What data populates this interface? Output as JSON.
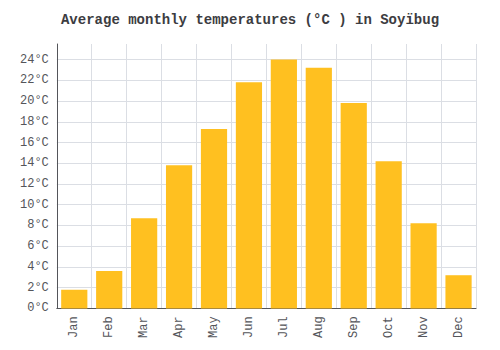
{
  "chart_data": {
    "type": "bar",
    "title": "Average monthly temperatures (°C ) in Soyïbug",
    "categories": [
      "Jan",
      "Feb",
      "Mar",
      "Apr",
      "May",
      "Jun",
      "Jul",
      "Aug",
      "Sep",
      "Oct",
      "Nov",
      "Dec"
    ],
    "values": [
      1.8,
      3.6,
      8.7,
      13.8,
      17.3,
      21.8,
      24.0,
      23.2,
      19.8,
      14.2,
      8.2,
      3.2
    ],
    "color": "#FFC020",
    "ylim": [
      0,
      25.5
    ],
    "yticks": [
      {
        "value": 0,
        "label": "0°C"
      },
      {
        "value": 2,
        "label": "2°C"
      },
      {
        "value": 4,
        "label": "4°C"
      },
      {
        "value": 6,
        "label": "6°C"
      },
      {
        "value": 8,
        "label": "8°C"
      },
      {
        "value": 10,
        "label": "10°C"
      },
      {
        "value": 12,
        "label": "12°C"
      },
      {
        "value": 14,
        "label": "14°C"
      },
      {
        "value": 16,
        "label": "16°C"
      },
      {
        "value": 18,
        "label": "18°C"
      },
      {
        "value": 20,
        "label": "20°C"
      },
      {
        "value": 22,
        "label": "22°C"
      },
      {
        "value": 24,
        "label": "24°C"
      }
    ],
    "grid": true
  }
}
